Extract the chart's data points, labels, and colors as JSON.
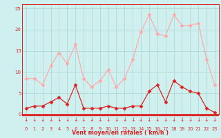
{
  "x": [
    0,
    1,
    2,
    3,
    4,
    5,
    6,
    7,
    8,
    9,
    10,
    11,
    12,
    13,
    14,
    15,
    16,
    17,
    18,
    19,
    20,
    21,
    22,
    23
  ],
  "wind_avg": [
    1.5,
    2.0,
    2.0,
    3.0,
    4.0,
    2.5,
    7.0,
    1.5,
    1.5,
    1.5,
    2.0,
    1.5,
    1.5,
    2.0,
    2.0,
    5.5,
    7.0,
    3.0,
    8.0,
    6.5,
    5.5,
    5.0,
    1.5,
    0.5
  ],
  "wind_gust": [
    8.5,
    8.5,
    7.0,
    11.5,
    14.5,
    12.0,
    16.5,
    8.5,
    6.5,
    8.0,
    10.5,
    6.5,
    8.5,
    13.0,
    19.5,
    23.5,
    19.0,
    18.5,
    23.5,
    21.0,
    21.0,
    21.5,
    13.0,
    7.0
  ],
  "avg_color": "#dd2222",
  "gust_color": "#ffaaaa",
  "bg_color": "#d0f0f0",
  "grid_color": "#b0d8d8",
  "axis_color": "#dd2222",
  "xlabel": "Vent moyen/en rafales ( km/h )",
  "ylim": [
    0,
    26
  ],
  "xlim_min": -0.5,
  "xlim_max": 23.5,
  "yticks": [
    0,
    5,
    10,
    15,
    20,
    25
  ],
  "xticks": [
    0,
    1,
    2,
    3,
    4,
    5,
    6,
    7,
    8,
    9,
    10,
    11,
    12,
    13,
    14,
    15,
    16,
    17,
    18,
    19,
    20,
    21,
    22,
    23
  ]
}
